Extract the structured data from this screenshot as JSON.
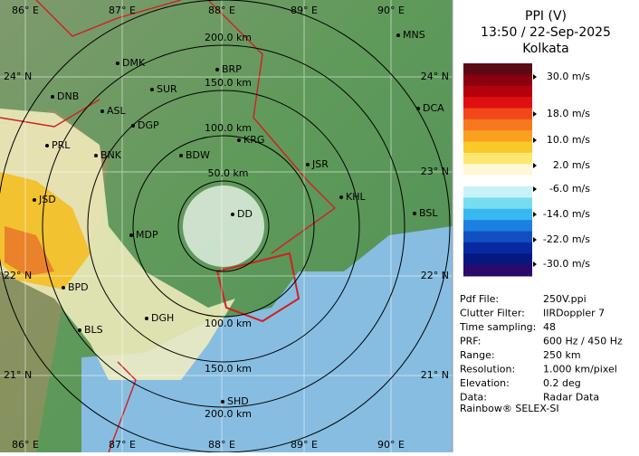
{
  "map": {
    "lon_labels_top": [
      "86° E",
      "87° E",
      "88° E",
      "89° E",
      "90° E"
    ],
    "lon_labels_bottom": [
      "86° E",
      "87° E",
      "88° E",
      "89° E",
      "90° E"
    ],
    "lat_labels_left": [
      "24° N",
      "22° N",
      "21° N"
    ],
    "lat_labels_right": [
      "24° N",
      "23° N",
      "22° N",
      "21° N"
    ],
    "ring_labels_top": [
      "50.0 km",
      "100.0 km",
      "150.0 km",
      "200.0 km"
    ],
    "ring_labels_bottom": [
      "100.0 km",
      "150.0 km",
      "200.0 km"
    ],
    "cities": [
      "MNS",
      "DMK",
      "BRP",
      "DNB",
      "SUR",
      "ASL",
      "DGP",
      "DCA",
      "PRL",
      "KRG",
      "BNK",
      "BDW",
      "JSR",
      "KHL",
      "JSD",
      "DD",
      "BSL",
      "MDP",
      "BPD",
      "DGH",
      "BLS",
      "SHD"
    ]
  },
  "panel": {
    "title": "PPI (V)",
    "time": "13:50 / 22-Sep-2025",
    "station": "Kolkata",
    "scale_labels": [
      "30.0 m/s",
      "18.0 m/s",
      "10.0 m/s",
      "2.0 m/s",
      "-6.0 m/s",
      "-14.0 m/s",
      "-22.0 m/s",
      "-30.0 m/s"
    ],
    "info": [
      [
        "Pdf File:",
        "250V.ppi"
      ],
      [
        "Clutter Filter:",
        "IIRDoppler 7"
      ],
      [
        "Time sampling:",
        "48"
      ],
      [
        "PRF:",
        "600 Hz / 450 Hz"
      ],
      [
        "Range:",
        "250 km"
      ],
      [
        "Resolution:",
        "1.000 km/pixel"
      ],
      [
        "Elevation:",
        "0.2 deg"
      ],
      [
        "Data:",
        "Radar Data"
      ]
    ],
    "footer": "Rainbow® SELEX-SI"
  }
}
